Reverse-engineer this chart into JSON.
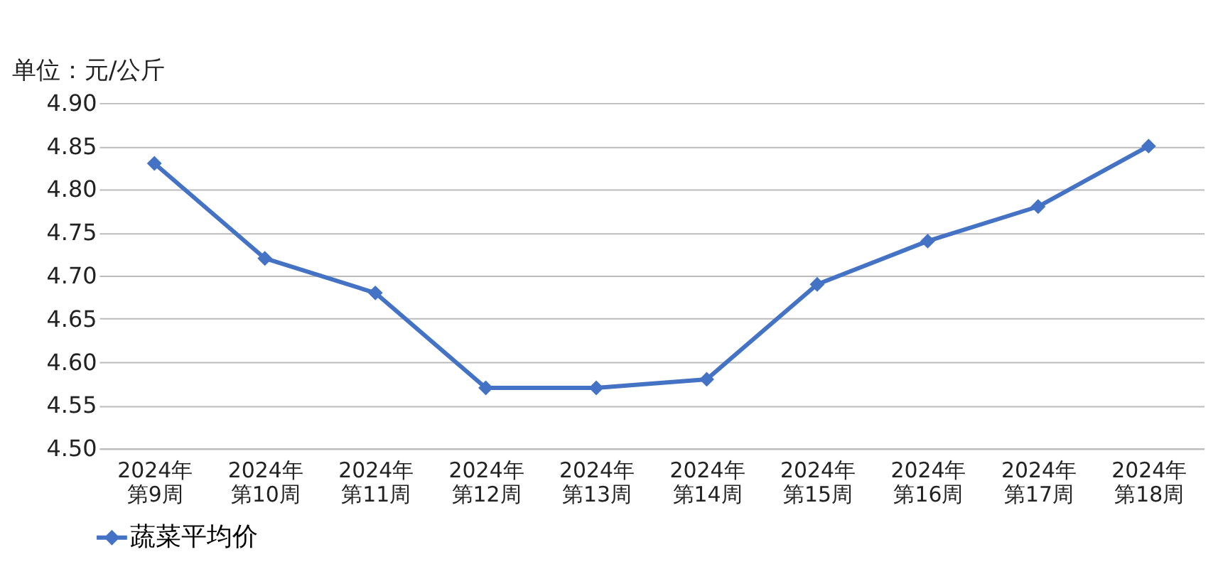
{
  "chart_data": {
    "type": "line",
    "ylabel": "单位：元/公斤",
    "categories": [
      "2024年第9周",
      "2024年第10周",
      "2024年第11周",
      "2024年第12周",
      "2024年第13周",
      "2024年第14周",
      "2024年第15周",
      "2024年第16周",
      "2024年第17周",
      "2024年第18周"
    ],
    "series": [
      {
        "name": "蔬菜平均价",
        "color": "#4472c4",
        "values": [
          4.83,
          4.72,
          4.68,
          4.57,
          4.57,
          4.58,
          4.69,
          4.74,
          4.78,
          4.85
        ]
      }
    ],
    "ylim": [
      4.5,
      4.9
    ],
    "yticks": [
      {
        "value": 4.5,
        "label": "4.50"
      },
      {
        "value": 4.55,
        "label": "4.55"
      },
      {
        "value": 4.6,
        "label": "4.60"
      },
      {
        "value": 4.65,
        "label": "4.65"
      },
      {
        "value": 4.7,
        "label": "4.70"
      },
      {
        "value": 4.75,
        "label": "4.75"
      },
      {
        "value": 4.8,
        "label": "4.80"
      },
      {
        "value": 4.85,
        "label": "4.85"
      },
      {
        "value": 4.9,
        "label": "4.90"
      }
    ],
    "grid": "y",
    "legend": "bottom",
    "marker": "diamond",
    "line_style": "solid"
  }
}
